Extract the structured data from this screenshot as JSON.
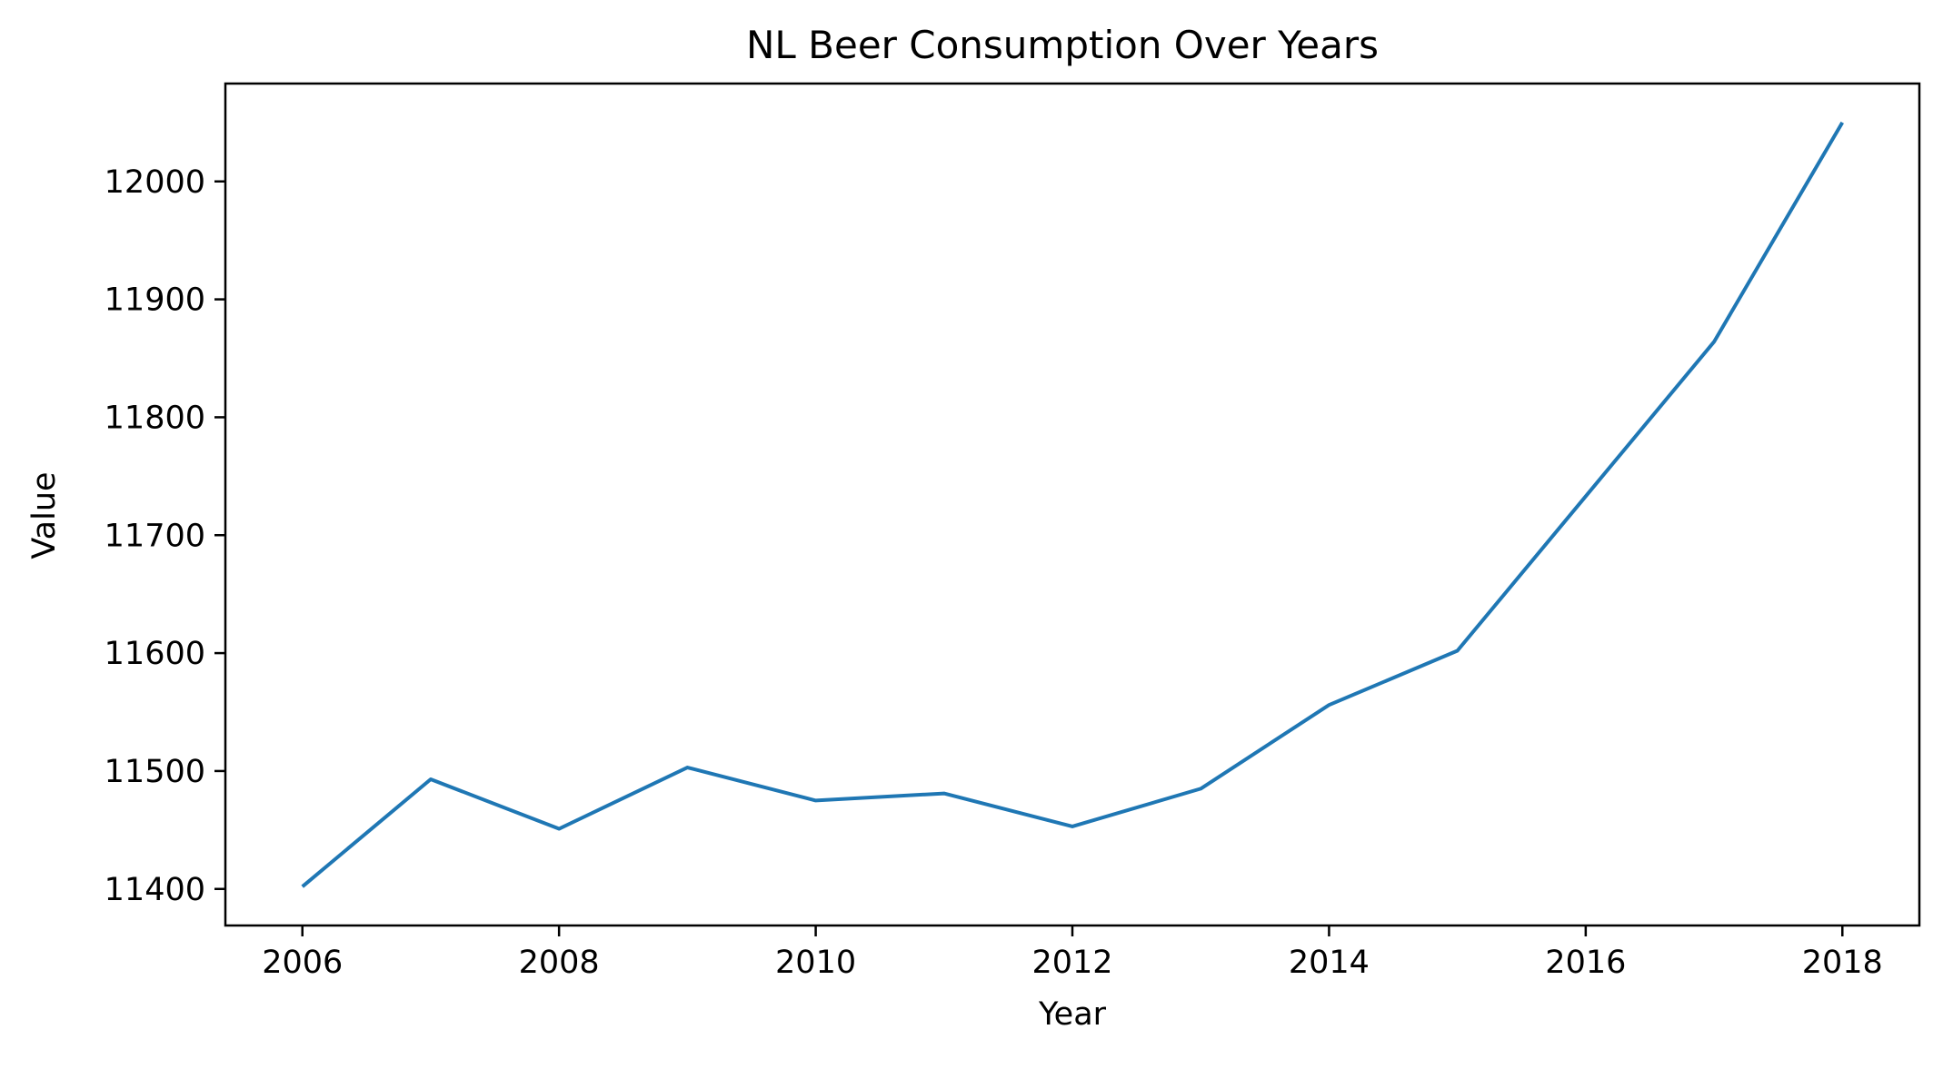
{
  "chart_data": {
    "type": "line",
    "title": "NL Beer Consumption Over Years",
    "xlabel": "Year",
    "ylabel": "Value",
    "xlim": [
      2005.4,
      2018.6
    ],
    "ylim": [
      11369,
      12083
    ],
    "xticks": [
      2006,
      2008,
      2010,
      2012,
      2014,
      2016,
      2018
    ],
    "yticks": [
      11400,
      11500,
      11600,
      11700,
      11800,
      11900,
      12000
    ],
    "grid": false,
    "series": [
      {
        "color": "#1f77b4",
        "x": [
          2006,
          2007,
          2008,
          2009,
          2010,
          2011,
          2012,
          2013,
          2014,
          2015,
          2016,
          2017,
          2018
        ],
        "y": [
          11402,
          11493,
          11451,
          11503,
          11475,
          11481,
          11453,
          11485,
          11556,
          11602,
          11733,
          11864,
          12050
        ]
      }
    ]
  }
}
